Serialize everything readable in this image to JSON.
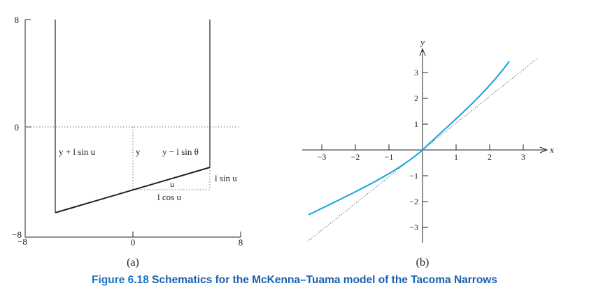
{
  "panel_a": {
    "label": "(a)",
    "y_ticks": [
      "8",
      "0",
      "−8"
    ],
    "x_ticks": [
      "−8",
      "0",
      "8"
    ],
    "labels": {
      "left_rod": "y + l sin u",
      "center": "y",
      "right_rod": "y − l sin θ",
      "angle": "u",
      "horizontal": "l cos u",
      "vertical": "l sin u"
    }
  },
  "panel_b": {
    "label": "(b)",
    "x_axis_label": "x",
    "y_axis_label": "y",
    "x_ticks": [
      "−3",
      "−2",
      "−1",
      "1",
      "2",
      "3"
    ],
    "y_ticks": [
      "3",
      "2",
      "1",
      "−1",
      "−2",
      "−3"
    ],
    "curve_color": "#1aa3e0"
  },
  "caption": {
    "number": "Figure 6.18",
    "text": "Schematics for the McKenna–Tuama model of the Tacoma Narrows"
  }
}
